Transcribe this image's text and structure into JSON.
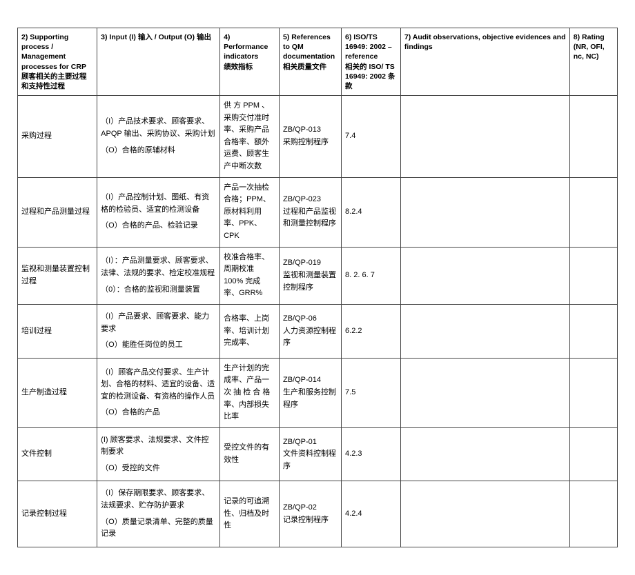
{
  "headers": {
    "c2": "2) Supporting process / Management processes for CRP\n顾客相关的主要过程和支持性过程",
    "c3": "3) Input (I) 输入 / Output (O) 输出",
    "c4": "4) Performance indicators\n绩效指标",
    "c5": "5) References to QM documentation\n相关质量文件",
    "c6": "6) ISO/TS 16949: 2002 – reference\n相关的 ISO/ TS 16949: 2002 条款",
    "c7": "7) Audit observations, objective evidences and findings",
    "c8": "8) Rating\n(NR, OFI, nc, NC)"
  },
  "rows": [
    {
      "c2": "采购过程",
      "c3_i": "（I）产品技术要求、顾客要求、APQP 输出、采购协议、采购计划",
      "c3_o": "（O）合格的原辅材料",
      "c4": "供 方 PPM 、采购交付准时率、采购产品合格率、额外运费、顾客生产中断次数",
      "c5": "ZB/QP-013\n采购控制程序",
      "c6": "7.4"
    },
    {
      "c2": "过程和产品测量过程",
      "c3_i": "（I）产品控制计划、图纸、有资格的检验员、适宜的检测设备",
      "c3_o": "（O）合格的产品、检验记录",
      "c4": "产品一次抽检合格；PPM、原材料利用率、PPK、CPK",
      "c5": "ZB/QP-023\n过程和产品监视和测量控制程序",
      "c6": "8.2.4"
    },
    {
      "c2": "监视和测量装置控制过程",
      "c3_i": "（I）：产品测量要求、顾客要求、法律、法规的要求、检定校准规程",
      "c3_o": "（0）：合格的监视和测量装置",
      "c4": "校准合格率、周期校准 100% 完成率、GRR%",
      "c5": "ZB/QP-019\n监视和测量装置控制程序",
      "c6": "8. 2. 6. 7"
    },
    {
      "c2": "培训过程",
      "c3_i": "（I）产品要求、顾客要求、能力要求",
      "c3_o": "（O）能胜任岗位的员工",
      "c4": "合格率、上岗率、培训计划完成率、",
      "c5": "ZB/QP-06\n人力资源控制程序",
      "c6": "6.2.2"
    },
    {
      "c2": "生产制造过程",
      "c3_i": "（I）顾客产品交付要求、生产计划、合格的材料、适宜的设备、适宜的检测设备、有资格的操作人员",
      "c3_o": "（O）合格的产品",
      "c4": "生产计划的完成率、产品一次 抽 检 合 格率、内部损失比率",
      "c5": "ZB/QP-014\n生产和服务控制程序",
      "c6": "7.5"
    },
    {
      "c2": "文件控制",
      "c3_i": "(I) 顾客要求、法规要求、文件控制要求",
      "c3_o": "（O）受控的文件",
      "c4": "受控文件的有效性",
      "c5": "ZB/QP-01\n文件资料控制程序",
      "c6": "4.2.3"
    },
    {
      "c2": "记录控制过程",
      "c3_i": "（I）保存期限要求、顾客要求、法规要求、贮存防护要求",
      "c3_o": "（O）质量记录清单、完整的质量记录",
      "c4": "记录的可追溯性、归档及时性",
      "c5": "ZB/QP-02\n记录控制程序",
      "c6": "4.2.4"
    }
  ]
}
